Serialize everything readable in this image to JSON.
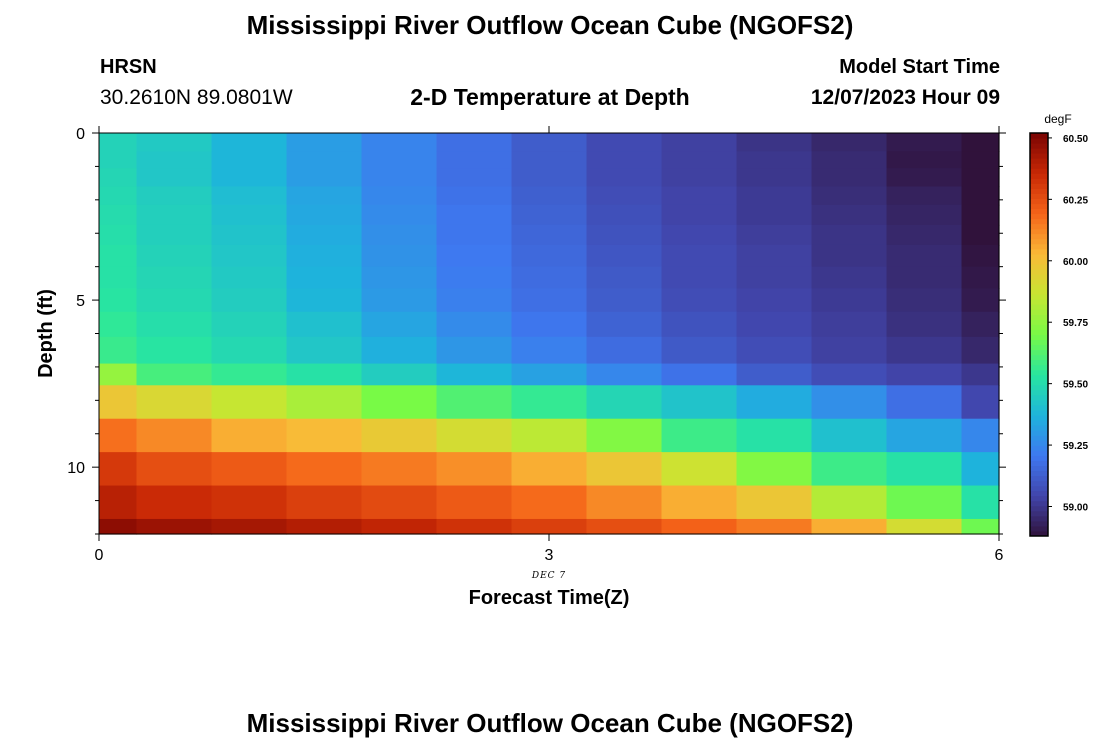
{
  "titles": {
    "top": "Mississippi River Outflow Ocean Cube (NGOFS2)",
    "bottom": "Mississippi River Outflow Ocean Cube (NGOFS2)"
  },
  "station": {
    "name": "HRSN",
    "coords": "30.2610N  89.0801W"
  },
  "plot_title": "2-D Temperature at Depth",
  "model": {
    "label": "Model Start Time",
    "time": "12/07/2023 Hour 09"
  },
  "chart_data": {
    "type": "heatmap",
    "title": "2-D Temperature at Depth",
    "xlabel": "Forecast Time(Z)",
    "ylabel": "Depth (ft)",
    "x_date_label": "DEC 7",
    "xlim": [
      0,
      6
    ],
    "ylim": [
      12,
      0
    ],
    "x_ticks": [
      0,
      3,
      6
    ],
    "y_ticks": [
      0,
      5,
      10
    ],
    "colorbar": {
      "unit": "degF",
      "min": 58.88,
      "max": 60.52,
      "ticks": [
        "59.00",
        "59.25",
        "59.50",
        "59.75",
        "60.00",
        "60.25",
        "60.50"
      ]
    },
    "x_edges": [
      0,
      0.25,
      0.75,
      1.25,
      1.75,
      2.25,
      2.75,
      3.25,
      3.75,
      4.25,
      4.75,
      5.25,
      5.75,
      6
    ],
    "y_edges": [
      0,
      0.55,
      1.05,
      1.6,
      2.15,
      2.75,
      3.35,
      4,
      4.65,
      5.35,
      6.1,
      6.9,
      7.55,
      8.55,
      9.55,
      10.55,
      11.55,
      12
    ],
    "values": [
      [
        59.47,
        59.44,
        59.38,
        59.31,
        59.24,
        59.18,
        59.12,
        59.06,
        59.03,
        58.99,
        58.95,
        58.91,
        58.84
      ],
      [
        59.47,
        59.43,
        59.38,
        59.31,
        59.24,
        59.18,
        59.12,
        59.06,
        59.03,
        59.0,
        58.96,
        58.9,
        58.85
      ],
      [
        59.48,
        59.43,
        59.38,
        59.31,
        59.24,
        59.18,
        59.12,
        59.06,
        59.03,
        59.0,
        58.96,
        58.91,
        58.85
      ],
      [
        59.49,
        59.45,
        59.4,
        59.33,
        59.25,
        59.19,
        59.13,
        59.07,
        59.04,
        59.01,
        58.97,
        58.93,
        58.86
      ],
      [
        59.5,
        59.46,
        59.41,
        59.34,
        59.26,
        59.2,
        59.14,
        59.08,
        59.04,
        59.01,
        58.98,
        58.94,
        58.87
      ],
      [
        59.51,
        59.46,
        59.42,
        59.35,
        59.27,
        59.2,
        59.15,
        59.09,
        59.05,
        59.02,
        58.99,
        58.95,
        58.88
      ],
      [
        59.52,
        59.47,
        59.43,
        59.36,
        59.28,
        59.21,
        59.16,
        59.1,
        59.06,
        59.03,
        58.99,
        58.96,
        58.89
      ],
      [
        59.52,
        59.48,
        59.44,
        59.37,
        59.29,
        59.22,
        59.17,
        59.11,
        59.06,
        59.03,
        59.0,
        58.96,
        58.9
      ],
      [
        59.53,
        59.49,
        59.45,
        59.38,
        59.3,
        59.23,
        59.18,
        59.12,
        59.07,
        59.04,
        59.01,
        58.97,
        58.91
      ],
      [
        59.55,
        59.51,
        59.47,
        59.41,
        59.33,
        59.26,
        59.2,
        59.14,
        59.09,
        59.05,
        59.02,
        58.98,
        58.93
      ],
      [
        59.57,
        59.53,
        59.49,
        59.43,
        59.36,
        59.29,
        59.23,
        59.17,
        59.11,
        59.07,
        59.03,
        59.0,
        58.95
      ],
      [
        59.76,
        59.6,
        59.56,
        59.52,
        59.45,
        59.38,
        59.32,
        59.25,
        59.19,
        59.12,
        59.07,
        59.04,
        59.0
      ],
      [
        59.98,
        59.92,
        59.86,
        59.8,
        59.7,
        59.62,
        59.56,
        59.48,
        59.42,
        59.35,
        59.27,
        59.18,
        59.05
      ],
      [
        60.17,
        60.12,
        60.05,
        60.02,
        59.97,
        59.9,
        59.84,
        59.72,
        59.58,
        59.52,
        59.41,
        59.33,
        59.25
      ],
      [
        60.31,
        60.25,
        60.22,
        60.18,
        60.15,
        60.11,
        60.05,
        59.98,
        59.88,
        59.72,
        59.58,
        59.52,
        59.37
      ],
      [
        60.39,
        60.35,
        60.33,
        60.29,
        60.26,
        60.22,
        60.18,
        60.12,
        60.05,
        59.98,
        59.82,
        59.68,
        59.52
      ],
      [
        60.48,
        60.45,
        60.43,
        60.4,
        60.37,
        60.33,
        60.29,
        60.25,
        60.2,
        60.15,
        60.05,
        59.9,
        59.68
      ]
    ]
  }
}
